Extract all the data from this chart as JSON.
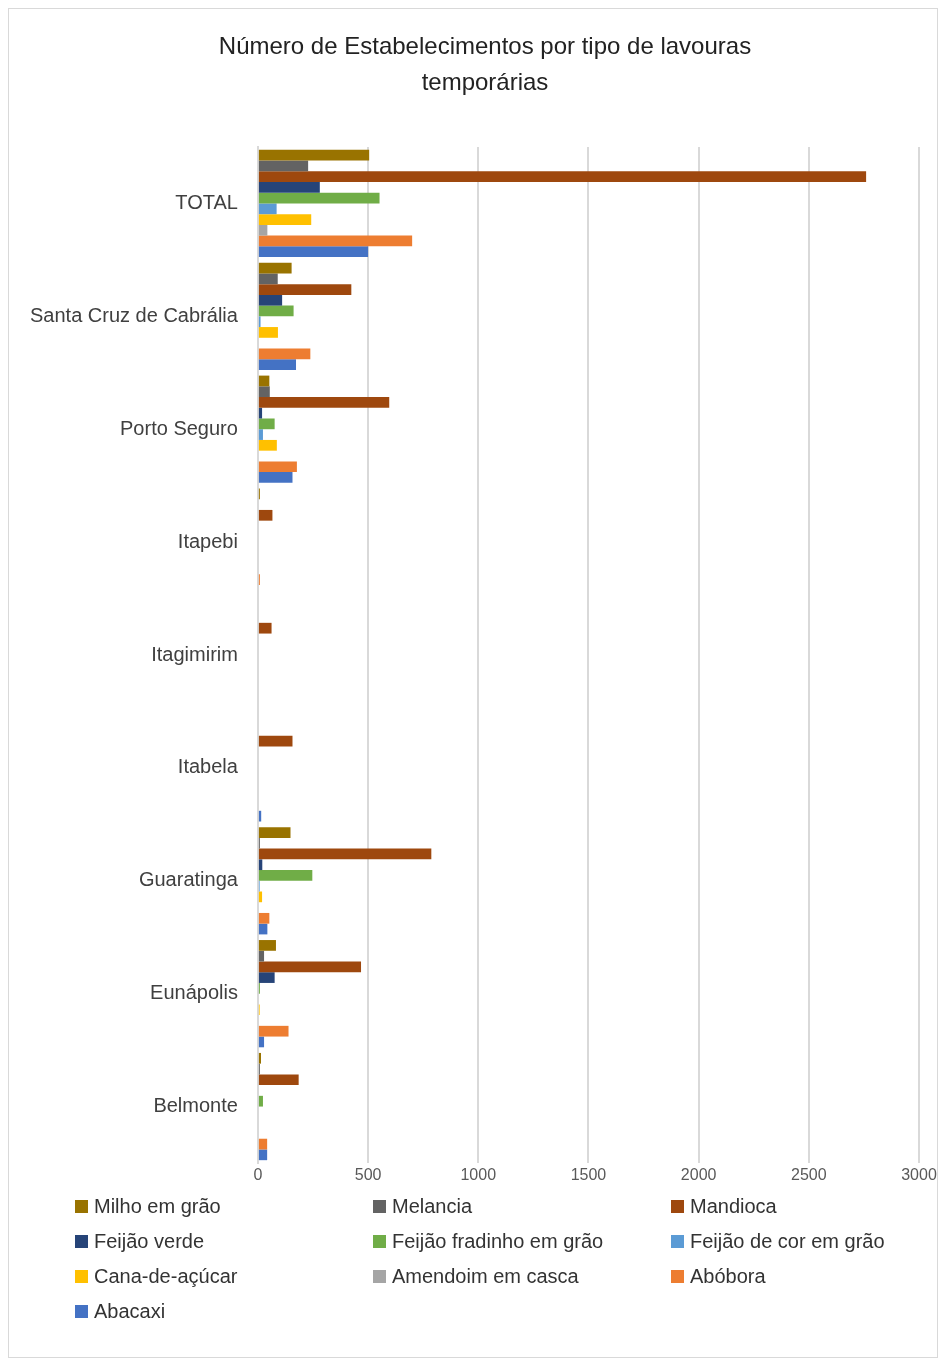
{
  "chart_data": {
    "type": "bar",
    "orientation": "horizontal",
    "title": "Número de Estabelecimentos por tipo de lavouras temporárias",
    "categories": [
      "TOTAL",
      "Santa Cruz de Cabrália",
      "Porto Seguro",
      "Itapebi",
      "Itagimirim",
      "Itabela",
      "Guaratinga",
      "Eunápolis",
      "Belmonte"
    ],
    "series": [
      {
        "name": "Milho em grão",
        "color": "#997300",
        "values": [
          505,
          153,
          52,
          9,
          0,
          0,
          148,
          82,
          14
        ]
      },
      {
        "name": "Melancia",
        "color": "#636363",
        "values": [
          228,
          90,
          54,
          0,
          0,
          0,
          9,
          28,
          9
        ]
      },
      {
        "name": "Mandioca",
        "color": "#9e480e",
        "values": [
          2760,
          424,
          596,
          66,
          62,
          157,
          787,
          468,
          185
        ]
      },
      {
        "name": "Feijão verde",
        "color": "#264478",
        "values": [
          281,
          110,
          19,
          null,
          0,
          null,
          20,
          76,
          0
        ]
      },
      {
        "name": "Feijão fradinho em grão",
        "color": "#70ad47",
        "values": [
          552,
          162,
          76,
          0,
          0,
          0,
          247,
          9,
          23
        ]
      },
      {
        "name": "Feijão de cor em grão",
        "color": "#5b9bd5",
        "values": [
          85,
          12,
          23,
          0,
          0,
          0,
          8,
          0,
          0
        ]
      },
      {
        "name": "Cana-de-açúcar",
        "color": "#ffc000",
        "values": [
          242,
          91,
          86,
          0,
          0,
          0,
          19,
          8,
          0
        ]
      },
      {
        "name": "Amendoim em casca",
        "color": "#a5a5a5",
        "values": [
          43,
          null,
          null,
          0,
          0,
          0,
          0,
          0,
          0
        ]
      },
      {
        "name": "Abóbora",
        "color": "#ed7d31",
        "values": [
          700,
          238,
          177,
          9,
          0,
          0,
          52,
          139,
          42
        ]
      },
      {
        "name": "Abacaxi",
        "color": "#4472c4",
        "values": [
          500,
          173,
          157,
          0,
          0,
          15,
          43,
          28,
          42
        ]
      }
    ],
    "xlim": [
      0,
      3000
    ],
    "xticks": [
      0,
      500,
      1000,
      1500,
      2000,
      2500,
      3000
    ],
    "grid": "x",
    "legend": "bottom"
  }
}
